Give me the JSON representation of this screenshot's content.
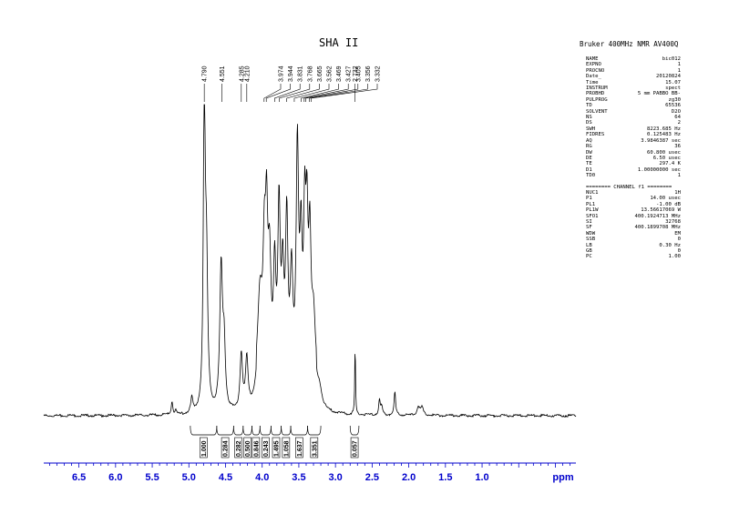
{
  "title": "SHA II",
  "header": "Bruker 400MHz NMR AV400Q",
  "params_group1": [
    {
      "k": "NAME",
      "v": "bic012"
    },
    {
      "k": "EXPNO",
      "v": "1"
    },
    {
      "k": "PROCNO",
      "v": "1"
    },
    {
      "k": "Date_",
      "v": "20120824"
    },
    {
      "k": "Time",
      "v": "15.07"
    },
    {
      "k": "INSTRUM",
      "v": "spect"
    },
    {
      "k": "PROBHD",
      "v": "5 mm PABBO BB-"
    },
    {
      "k": "PULPROG",
      "v": "zg30"
    },
    {
      "k": "TD",
      "v": "65536"
    },
    {
      "k": "SOLVENT",
      "v": "D2O"
    },
    {
      "k": "NS",
      "v": "64"
    },
    {
      "k": "DS",
      "v": "2"
    },
    {
      "k": "SWH",
      "v": "8223.685 Hz"
    },
    {
      "k": "FIDRES",
      "v": "0.125483 Hz"
    },
    {
      "k": "AQ",
      "v": "3.9846387 sec"
    },
    {
      "k": "RG",
      "v": "36"
    },
    {
      "k": "DW",
      "v": "60.800 usec"
    },
    {
      "k": "DE",
      "v": "6.50 usec"
    },
    {
      "k": "TE",
      "v": "297.4 K"
    },
    {
      "k": "D1",
      "v": "1.00000000 sec"
    },
    {
      "k": "TD0",
      "v": "1"
    }
  ],
  "channel_label": "======== CHANNEL f1 ========",
  "params_group2": [
    {
      "k": "NUC1",
      "v": "1H"
    },
    {
      "k": "P1",
      "v": "14.00 usec"
    },
    {
      "k": "PL1",
      "v": "-1.00 dB"
    },
    {
      "k": "PL1W",
      "v": "13.56617069 W"
    },
    {
      "k": "SFO1",
      "v": "400.1924713 MHz"
    },
    {
      "k": "SI",
      "v": "32768"
    },
    {
      "k": "SF",
      "v": "400.1899708 MHz"
    },
    {
      "k": "WDW",
      "v": "EM"
    },
    {
      "k": "SSB",
      "v": "0"
    },
    {
      "k": "LB",
      "v": "0.30 Hz"
    },
    {
      "k": "GB",
      "v": "0"
    },
    {
      "k": "PC",
      "v": "1.00"
    }
  ],
  "chart_data": {
    "type": "line",
    "xlabel": "ppm",
    "xlim": [
      6.98,
      -0.28
    ],
    "x_ticks": [
      "6.5",
      "6.0",
      "5.5",
      "5.0",
      "4.5",
      "4.0",
      "3.5",
      "3.0",
      "2.5",
      "2.0",
      "1.5",
      "1.0"
    ],
    "x_tick_values": [
      6.5,
      6.0,
      5.5,
      5.0,
      4.5,
      4.0,
      3.5,
      3.0,
      2.5,
      2.0,
      1.5,
      1.0
    ],
    "peak_labels": [
      {
        "ppm": 4.79,
        "text": "4.790"
      },
      {
        "ppm": 4.551,
        "text": "4.551"
      },
      {
        "ppm": 4.285,
        "text": "4.285"
      },
      {
        "ppm": 4.21,
        "text": "4.210"
      },
      {
        "ppm": 3.974,
        "text": "3.974"
      },
      {
        "ppm": 3.944,
        "text": "3.944"
      },
      {
        "ppm": 3.831,
        "text": "3.831"
      },
      {
        "ppm": 3.768,
        "text": "3.768"
      },
      {
        "ppm": 3.665,
        "text": "3.665"
      },
      {
        "ppm": 3.562,
        "text": "3.562"
      },
      {
        "ppm": 3.469,
        "text": "3.469"
      },
      {
        "ppm": 3.427,
        "text": "3.427"
      },
      {
        "ppm": 3.405,
        "text": "3.405"
      },
      {
        "ppm": 3.356,
        "text": "3.356"
      },
      {
        "ppm": 3.332,
        "text": "3.332"
      },
      {
        "ppm": 2.732,
        "text": "2.732"
      }
    ],
    "integrals": [
      {
        "from": 4.98,
        "to": 4.62,
        "value": "1.000"
      },
      {
        "from": 4.62,
        "to": 4.39,
        "value": "0.284"
      },
      {
        "from": 4.39,
        "to": 4.26,
        "value": "0.282"
      },
      {
        "from": 4.26,
        "to": 4.14,
        "value": "0.500"
      },
      {
        "from": 4.14,
        "to": 4.03,
        "value": "0.846"
      },
      {
        "from": 4.03,
        "to": 3.88,
        "value": "0.243"
      },
      {
        "from": 3.88,
        "to": 3.74,
        "value": "1.495"
      },
      {
        "from": 3.74,
        "to": 3.61,
        "value": "1.058"
      },
      {
        "from": 3.61,
        "to": 3.38,
        "value": "1.637"
      },
      {
        "from": 3.38,
        "to": 3.2,
        "value": "3.351"
      },
      {
        "from": 2.8,
        "to": 2.68,
        "value": "0.057"
      }
    ],
    "peaks": [
      {
        "ppm": 5.23,
        "h": 0.045,
        "w": 0.012
      },
      {
        "ppm": 5.18,
        "h": 0.015,
        "w": 0.01
      },
      {
        "ppm": 4.96,
        "h": 0.05,
        "w": 0.015
      },
      {
        "ppm": 4.79,
        "h": 1.0,
        "w": 0.015
      },
      {
        "ppm": 4.76,
        "h": 0.45,
        "w": 0.02
      },
      {
        "ppm": 4.56,
        "h": 0.46,
        "w": 0.022
      },
      {
        "ppm": 4.52,
        "h": 0.2,
        "w": 0.02
      },
      {
        "ppm": 4.285,
        "h": 0.18,
        "w": 0.02
      },
      {
        "ppm": 4.21,
        "h": 0.16,
        "w": 0.02
      },
      {
        "ppm": 4.03,
        "h": 0.3,
        "w": 0.04
      },
      {
        "ppm": 3.97,
        "h": 0.38,
        "w": 0.022
      },
      {
        "ppm": 3.94,
        "h": 0.42,
        "w": 0.018
      },
      {
        "ppm": 3.9,
        "h": 0.38,
        "w": 0.025
      },
      {
        "ppm": 3.83,
        "h": 0.35,
        "w": 0.02
      },
      {
        "ppm": 3.77,
        "h": 0.56,
        "w": 0.02
      },
      {
        "ppm": 3.72,
        "h": 0.33,
        "w": 0.02
      },
      {
        "ppm": 3.665,
        "h": 0.52,
        "w": 0.02
      },
      {
        "ppm": 3.6,
        "h": 0.35,
        "w": 0.022
      },
      {
        "ppm": 3.52,
        "h": 0.75,
        "w": 0.02
      },
      {
        "ppm": 3.47,
        "h": 0.42,
        "w": 0.02
      },
      {
        "ppm": 3.42,
        "h": 0.48,
        "w": 0.018
      },
      {
        "ppm": 3.39,
        "h": 0.45,
        "w": 0.018
      },
      {
        "ppm": 3.35,
        "h": 0.44,
        "w": 0.02
      },
      {
        "ppm": 3.3,
        "h": 0.22,
        "w": 0.03
      },
      {
        "ppm": 3.22,
        "h": 0.06,
        "w": 0.04
      },
      {
        "ppm": 2.732,
        "h": 0.23,
        "w": 0.006
      },
      {
        "ppm": 2.4,
        "h": 0.045,
        "w": 0.012
      },
      {
        "ppm": 2.37,
        "h": 0.025,
        "w": 0.015
      },
      {
        "ppm": 2.19,
        "h": 0.075,
        "w": 0.012
      },
      {
        "ppm": 1.87,
        "h": 0.03,
        "w": 0.02
      },
      {
        "ppm": 1.82,
        "h": 0.025,
        "w": 0.02
      }
    ],
    "colors": {
      "spectrum": "#000000",
      "axis": "#0000cc",
      "integral": "#000000"
    }
  }
}
